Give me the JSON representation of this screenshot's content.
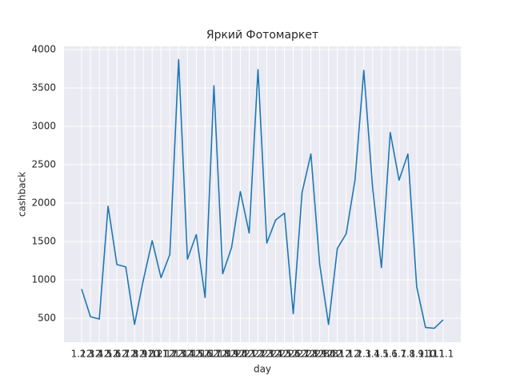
{
  "chart_data": {
    "type": "line",
    "title": "Яркий Фотомаркет",
    "x_label": "day",
    "y_label": "cashback",
    "categories": [
      "1.12",
      "2.12",
      "3.12",
      "4.12",
      "5.12",
      "6.12",
      "7.12",
      "8.12",
      "9.12",
      "10.12",
      "11.12",
      "12.12",
      "13.12",
      "14.12",
      "15.12",
      "16.12",
      "17.12",
      "18.12",
      "19.12",
      "20.12",
      "21.12",
      "22.12",
      "23.12",
      "24.12",
      "25.12",
      "26.12",
      "27.12",
      "28.12",
      "29.12",
      "30.12",
      "31.12",
      "1.1",
      "2.1",
      "3.1",
      "4.1",
      "5.1",
      "6.1",
      "7.1",
      "8.1",
      "9.1",
      "10.1",
      "11.1"
    ],
    "series": [
      {
        "name": "cashback",
        "color": "#1f77b4",
        "values": [
          880,
          520,
          490,
          1960,
          1200,
          1170,
          420,
          1000,
          1510,
          1030,
          1330,
          3870,
          1270,
          1590,
          770,
          3530,
          1080,
          1420,
          2150,
          1610,
          3740,
          1480,
          1780,
          1870,
          560,
          2140,
          2640,
          1200,
          420,
          1410,
          1600,
          2300,
          3730,
          2200,
          1160,
          2920,
          2300,
          2640,
          910,
          380,
          370,
          480
        ]
      }
    ],
    "ylim": [
      188,
      4042
    ],
    "yticks": [
      500,
      1000,
      1500,
      2000,
      2500,
      3000,
      3500,
      4000
    ],
    "grid": true
  }
}
